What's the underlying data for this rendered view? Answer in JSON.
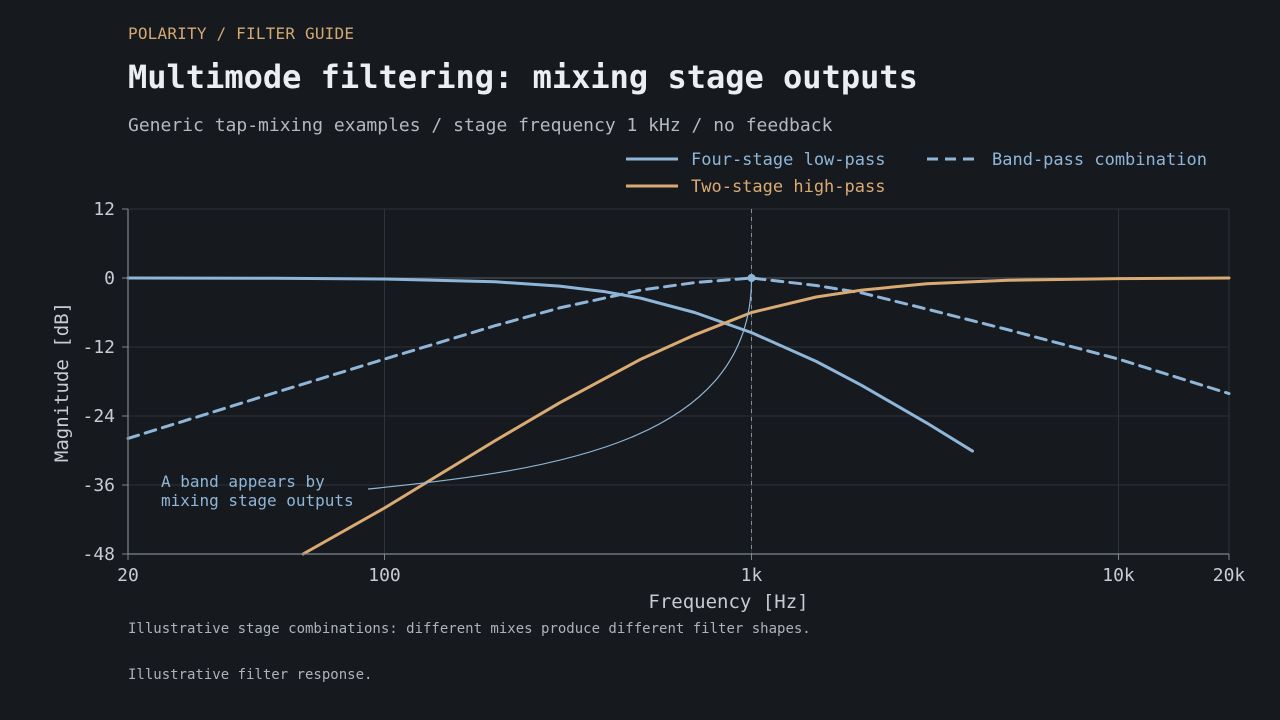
{
  "header": {
    "eyebrow": "POLARITY / FILTER GUIDE",
    "title": "Multimode filtering: mixing stage outputs",
    "subtitle": "Generic tap-mixing examples / stage frequency 1 kHz / no feedback"
  },
  "footer": {
    "caption": "Illustrative stage combinations: different mixes produce different filter shapes.",
    "note": "Illustrative filter response."
  },
  "colors": {
    "background": "#16191e",
    "blue": "#8fb6d8",
    "orange": "#d9ab73",
    "grid": "#2e333b",
    "axis": "#7f858e"
  },
  "chart_data": {
    "type": "line",
    "xscale": "log",
    "xlim": [
      20,
      20000
    ],
    "ylim": [
      -48,
      12
    ],
    "xlabel": "Frequency [Hz]",
    "ylabel": "Magnitude [dB]",
    "xticks": [
      {
        "value": 20,
        "label": "20"
      },
      {
        "value": 100,
        "label": "100"
      },
      {
        "value": 1000,
        "label": "1k"
      },
      {
        "value": 10000,
        "label": "10k"
      },
      {
        "value": 20000,
        "label": "20k"
      }
    ],
    "yticks": [
      {
        "value": 12,
        "label": "12"
      },
      {
        "value": 0,
        "label": "0"
      },
      {
        "value": -12,
        "label": "-12"
      },
      {
        "value": -24,
        "label": "-24"
      },
      {
        "value": -36,
        "label": "-36"
      },
      {
        "value": -48,
        "label": "-48"
      }
    ],
    "legend_position": "top-right",
    "reference_line": {
      "x": 1000
    },
    "series": [
      {
        "name": "Four-stage low-pass",
        "color": "#8fb6d8",
        "dash": false,
        "x": [
          20,
          50,
          100,
          200,
          300,
          400,
          500,
          700,
          1000,
          1500,
          2000,
          3000,
          4000
        ],
        "y": [
          0,
          -0.04,
          -0.17,
          -0.66,
          -1.42,
          -2.4,
          -3.52,
          -6.0,
          -9.5,
          -14.5,
          -18.7,
          -25.2,
          -30.1
        ]
      },
      {
        "name": "Band-pass combination",
        "color": "#8fb6d8",
        "dash": true,
        "x": [
          20,
          50,
          100,
          200,
          300,
          500,
          700,
          1000,
          1500,
          2000,
          3000,
          5000,
          10000,
          20000
        ],
        "y": [
          -27.9,
          -20.0,
          -14.1,
          -8.3,
          -5.2,
          -2.1,
          -0.8,
          0,
          -1.3,
          -2.6,
          -5.4,
          -9.0,
          -14.1,
          -20.1
        ]
      },
      {
        "name": "Two-stage high-pass",
        "color": "#d9ab73",
        "dash": false,
        "x": [
          60,
          100,
          200,
          300,
          500,
          700,
          1000,
          1500,
          2000,
          3000,
          5000,
          10000,
          20000
        ],
        "y": [
          -48,
          -40,
          -28.3,
          -21.7,
          -14.1,
          -9.9,
          -6.0,
          -3.3,
          -2.1,
          -1.0,
          -0.4,
          -0.1,
          0
        ]
      }
    ],
    "annotation": {
      "text_line1": "A band appears by",
      "text_line2": "mixing stage outputs",
      "target": {
        "x": 1000,
        "y": 0
      }
    }
  }
}
